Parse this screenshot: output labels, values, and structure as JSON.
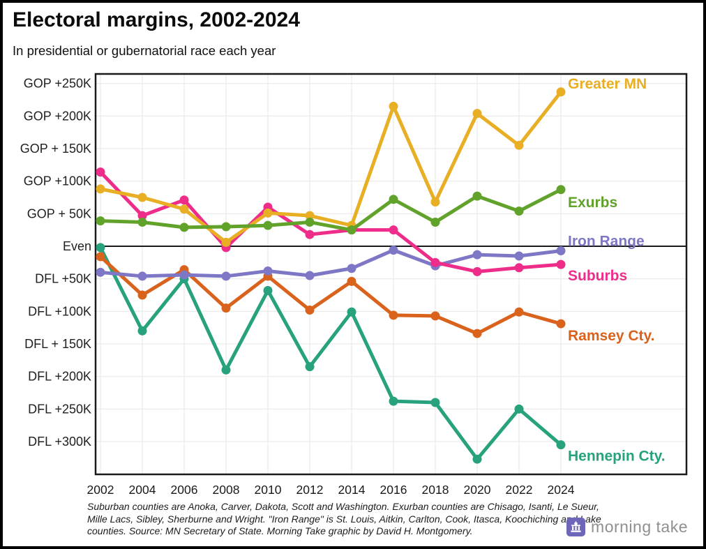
{
  "header": {
    "title": "Electoral margins, 2002-2024",
    "subtitle": "In presidential or gubernatorial race each year"
  },
  "chart_data": {
    "type": "line",
    "title": "Electoral margins, 2002-2024",
    "subtitle": "In presidential or gubernatorial race each year",
    "x": [
      2002,
      2004,
      2006,
      2008,
      2010,
      2012,
      2014,
      2016,
      2018,
      2020,
      2022,
      2024
    ],
    "x_tick_labels": [
      "2002",
      "2004",
      "2006",
      "2008",
      "2010",
      "2012",
      "2014",
      "2016",
      "2018",
      "2020",
      "2022",
      "2024"
    ],
    "y_unit": "thousands of votes; positive = GOP margin, negative = DFL margin",
    "y_ticks": [
      {
        "label": "GOP +250K",
        "v": 250
      },
      {
        "label": "GOP +200K",
        "v": 200
      },
      {
        "label": "GOP + 150K",
        "v": 150
      },
      {
        "label": "GOP +100K",
        "v": 100
      },
      {
        "label": "GOP + 50K",
        "v": 50
      },
      {
        "label": "Even",
        "v": 0
      },
      {
        "label": "DFL +50K",
        "v": -50
      },
      {
        "label": "DFL +100K",
        "v": -100
      },
      {
        "label": "DFL + 150K",
        "v": -150
      },
      {
        "label": "DFL +200K",
        "v": -200
      },
      {
        "label": "DFL +250K",
        "v": -250
      },
      {
        "label": "DFL +300K",
        "v": -300
      }
    ],
    "ylim": [
      -352,
      264
    ],
    "grid": true,
    "baseline_label": "Even",
    "legend_position": "inline-right",
    "series": [
      {
        "name": "Greater MN",
        "color": "#E8AE24",
        "values": [
          88,
          75,
          57,
          6,
          51,
          47,
          32,
          215,
          68,
          204,
          155,
          237
        ]
      },
      {
        "name": "Exurbs",
        "color": "#61A22B",
        "values": [
          39,
          37,
          29,
          30,
          32,
          37,
          25,
          72,
          37,
          77,
          54,
          87
        ]
      },
      {
        "name": "Iron Range",
        "color": "#7D77C6",
        "values": [
          -40,
          -46,
          -44,
          -46,
          -38,
          -45,
          -34,
          -6,
          -30,
          -13,
          -15,
          -7
        ]
      },
      {
        "name": "Suburbs",
        "color": "#EE2D8A",
        "values": [
          114,
          47,
          71,
          -2,
          60,
          18,
          25,
          25,
          -25,
          -39,
          -33,
          -28
        ]
      },
      {
        "name": "Ramsey Cty.",
        "color": "#D9621C",
        "values": [
          -16,
          -75,
          -36,
          -95,
          -46,
          -98,
          -54,
          -106,
          -107,
          -134,
          -101,
          -119
        ]
      },
      {
        "name": "Hennepin Cty.",
        "color": "#27A27C",
        "values": [
          -2,
          -130,
          -50,
          -190,
          -68,
          -185,
          -101,
          -238,
          -240,
          -327,
          -250,
          -305
        ]
      }
    ]
  },
  "footer": {
    "note_lines": [
      "Suburban counties are Anoka, Carver, Dakota, Scott and Washington. Exurban counties are Chisago, Isanti, Le Sueur,",
      "Mille Lacs, Sibley, Sherburne and Wright. \"Iron Range\" is St. Louis, Aitkin, Carlton, Cook, Itasca, Koochiching and Lake",
      "counties. Source: MN Secretary of State. Morning Take graphic by David H. Montgomery."
    ],
    "logo_text": "morning take",
    "logo_color": "#6E66B8"
  }
}
